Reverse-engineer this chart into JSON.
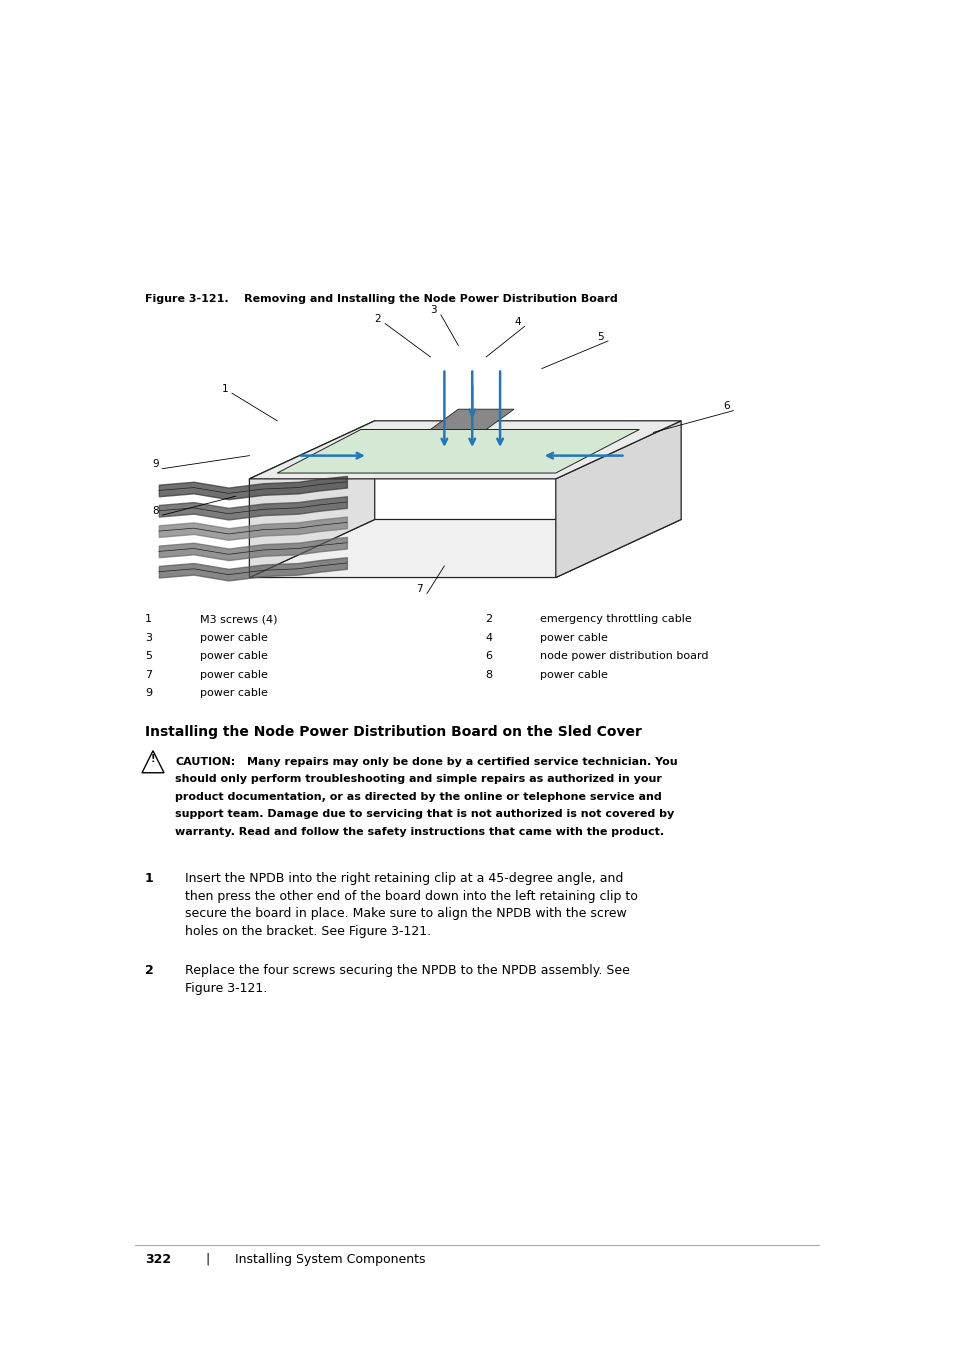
{
  "background_color": "#ffffff",
  "page_width": 9.54,
  "page_height": 13.5,
  "figure_caption": "Figure 3-121.    Removing and Installing the Node Power Distribution Board",
  "caption_fontsize": 8.5,
  "legend_items": [
    {
      "num": "1",
      "text": "M3 screws (4)",
      "col": 0
    },
    {
      "num": "2",
      "text": "emergency throttling cable",
      "col": 1
    },
    {
      "num": "3",
      "text": "power cable",
      "col": 0
    },
    {
      "num": "4",
      "text": "power cable",
      "col": 1
    },
    {
      "num": "5",
      "text": "power cable",
      "col": 0
    },
    {
      "num": "6",
      "text": "node power distribution board",
      "col": 1
    },
    {
      "num": "7",
      "text": "power cable",
      "col": 0
    },
    {
      "num": "8",
      "text": "power cable",
      "col": 1
    },
    {
      "num": "9",
      "text": "power cable",
      "col": 0
    }
  ],
  "section_title": "Installing the Node Power Distribution Board on the Sled Cover",
  "caution_title": "CAUTION:",
  "caution_body_lines": [
    "Many repairs may only be done by a certified service technician. You",
    "should only perform troubleshooting and simple repairs as authorized in your",
    "product documentation, or as directed by the online or telephone service and",
    "support team. Damage due to servicing that is not authorized is not covered by",
    "warranty. Read and follow the safety instructions that came with the product."
  ],
  "steps": [
    {
      "num": "1",
      "lines": [
        "Insert the NPDB into the right retaining clip at a 45-degree angle, and",
        "then press the other end of the board down into the left retaining clip to",
        "secure the board in place. Make sure to align the NPDB with the screw",
        "holes on the bracket. See Figure 3-121."
      ]
    },
    {
      "num": "2",
      "lines": [
        "Replace the four screws securing the NPDB to the NPDB assembly. See",
        "Figure 3-121."
      ]
    }
  ],
  "footer_page": "322",
  "footer_sep": "|",
  "footer_text": "Installing System Components",
  "text_color": "#000000",
  "blue_color": "#2277bb",
  "dark_color": "#333333"
}
